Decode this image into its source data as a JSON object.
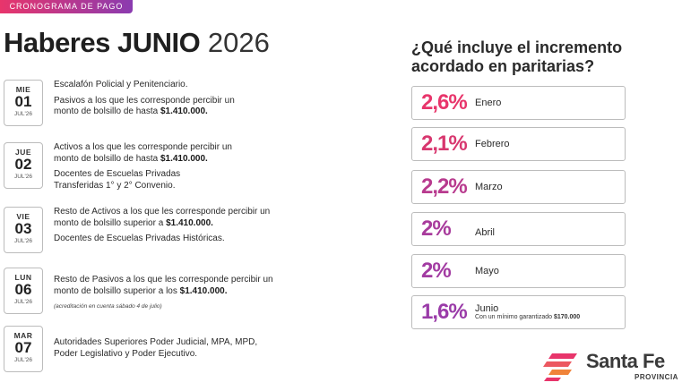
{
  "badge": "CRONOGRAMA DE PAGO",
  "title": {
    "bold": "Haberes JUNIO",
    "year": "2026"
  },
  "schedule": [
    {
      "dow": "MIE",
      "day": "01",
      "mon": "JUL'26",
      "p1": "Escalafón Policial y Penitenciario.",
      "p2a": "Pasivos a los que les corresponde percibir un monto de bolsillo de hasta ",
      "p2b": "$1.410.000."
    },
    {
      "dow": "JUE",
      "day": "02",
      "mon": "JUL'26",
      "p1a": "Activos a los que les corresponde percibir un monto de bolsillo de hasta ",
      "p1b": "$1.410.000.",
      "p2": "Docentes de Escuelas Privadas Transferidas 1° y 2° Convenio."
    },
    {
      "dow": "VIE",
      "day": "03",
      "mon": "JUL'26",
      "p1a": "Resto de Activos a los que les corresponde percibir un monto de bolsillo superior a ",
      "p1b": "$1.410.000.",
      "p2": "Docentes de Escuelas Privadas Históricas."
    },
    {
      "dow": "LUN",
      "day": "06",
      "mon": "JUL'26",
      "p1a": "Resto de Pasivos a los que les corresponde percibir un monto de bolsillo superior a los ",
      "p1b": "$1.410.000.",
      "note": "(acreditación en cuenta sábado 4 de julio)"
    },
    {
      "dow": "MAR",
      "day": "07",
      "mon": "JUL'26",
      "p1": "Autoridades Superiores Poder Judicial, MPA, MPD, Poder Legislativo y Poder Ejecutivo."
    }
  ],
  "question": "¿Qué incluye el  incremento acordado en paritarias?",
  "increments": [
    {
      "pct": "2,6%",
      "month": "Enero",
      "color": "#e8356b"
    },
    {
      "pct": "2,1%",
      "month": "Febrero",
      "color": "#d8376f"
    },
    {
      "pct": "2,2%",
      "month": "Marzo",
      "color": "#b83a8e"
    },
    {
      "pct": "2%",
      "month": "Abril",
      "color": "#a83b9c"
    },
    {
      "pct": "2%",
      "month": "Mayo",
      "color": "#a23ba2"
    },
    {
      "pct": "1,6%",
      "month": "Junio",
      "color": "#9a3ba8",
      "sub_a": "Con un mínimo garantizado ",
      "sub_b": "$170.000"
    }
  ],
  "logo": {
    "name": "Santa Fe",
    "sub": "PROVINCIA",
    "colors": [
      "#e8356b",
      "#f0833a"
    ]
  }
}
